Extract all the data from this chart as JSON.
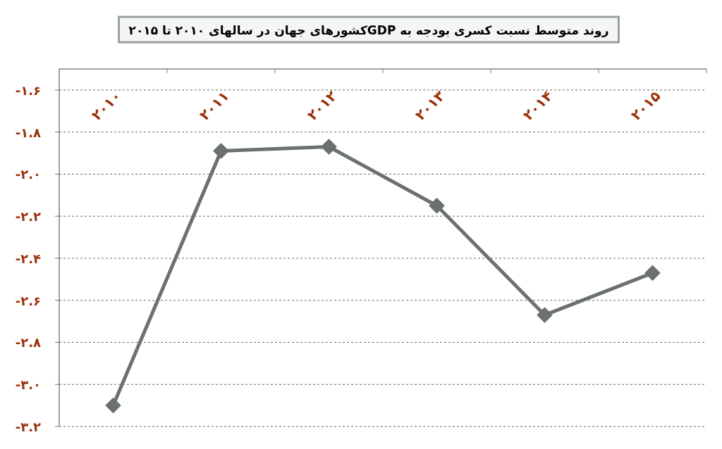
{
  "chart_data": {
    "type": "line",
    "title": "روند متوسط نسبت کسری بودجه به GDPکشورهای جهان در سالهای ۲۰۱۰ تا ۲۰۱۵",
    "categories": [
      "۲۰۱۰",
      "۲۰۱۱",
      "۲۰۱۲",
      "۲۰۱۳",
      "۲۰۱۴",
      "۲۰۱۵"
    ],
    "series": [
      {
        "color": "#6b7070",
        "values": [
          -3.1,
          -1.89,
          -1.87,
          -2.15,
          -2.67,
          -2.47
        ]
      }
    ],
    "ylim": [
      -3.2,
      -1.5
    ],
    "yticks": [
      {
        "value": -1.6,
        "label": "-۱.۶"
      },
      {
        "value": -1.8,
        "label": "-۱.۸"
      },
      {
        "value": -2.0,
        "label": "-۲.۰"
      },
      {
        "value": -2.2,
        "label": "-۲.۲"
      },
      {
        "value": -2.4,
        "label": "-۲.۴"
      },
      {
        "value": -2.6,
        "label": "-۲.۶"
      },
      {
        "value": -2.8,
        "label": "-۲.۸"
      },
      {
        "value": -3.0,
        "label": "-۳.۰"
      },
      {
        "value": -3.2,
        "label": "-۳.۲"
      }
    ],
    "grid": "y",
    "marker": "diamond",
    "line_style": "solid"
  }
}
